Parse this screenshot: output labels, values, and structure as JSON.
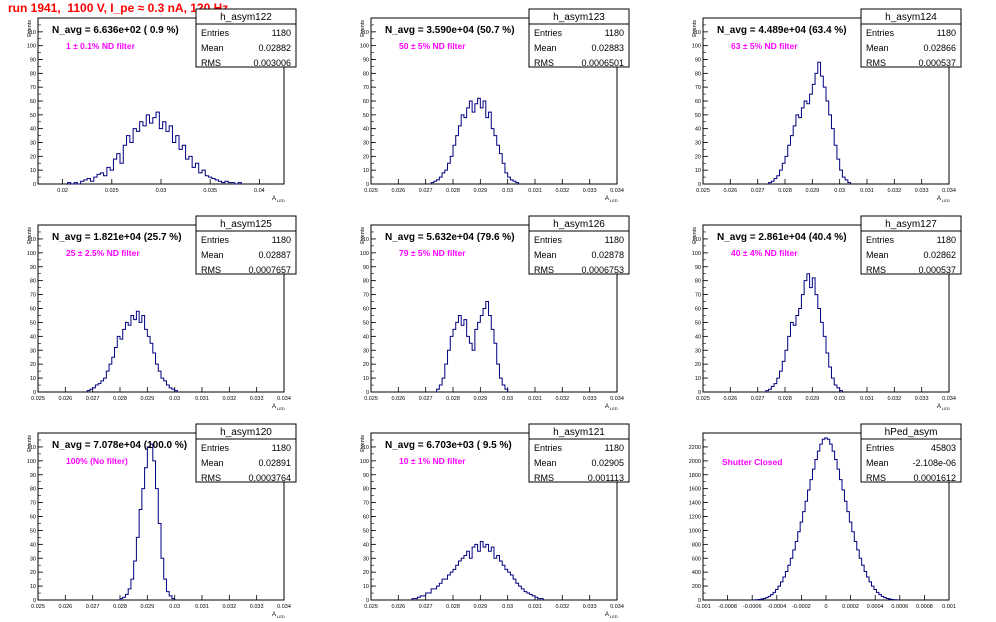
{
  "page": {
    "title": "run 1941,  1100 V, I_pe ≈ 0.3 nA, 120 Hz",
    "title_color": "#ff0000"
  },
  "style": {
    "histogram_color": "#000080",
    "annotation_color": "#ff00ff",
    "frame_color": "#000000"
  },
  "chart_data": [
    {
      "type": "bar",
      "name": "h_asym122",
      "navg": "N_avg = 6.636e+02 ( 0.9 %)",
      "annotation": "1 ± 0.1% ND filter",
      "stats": [
        [
          "Entries",
          "1180"
        ],
        [
          "Mean",
          "0.02882"
        ],
        [
          "RMS",
          "0.003006"
        ]
      ],
      "ylabel": "Events",
      "xlabel": "A",
      "xlim": [
        0.0175,
        0.0425
      ],
      "ylim": [
        0,
        120
      ],
      "yticks": [
        0,
        10,
        20,
        30,
        40,
        50,
        60,
        70,
        80,
        90,
        100,
        110
      ],
      "xticks": [
        0.02,
        0.025,
        0.03,
        0.035,
        0.04
      ],
      "xtick_labels": [
        "0.02",
        "0.025",
        "0.03",
        "0.035",
        "0.04"
      ],
      "bin_width": 0.0003333,
      "values": [
        1,
        0,
        1,
        0,
        2,
        3,
        4,
        2,
        5,
        7,
        8,
        6,
        12,
        10,
        18,
        22,
        15,
        28,
        35,
        30,
        40,
        38,
        45,
        42,
        50,
        44,
        48,
        52,
        40,
        45,
        38,
        42,
        30,
        35,
        25,
        28,
        18,
        20,
        12,
        15,
        8,
        10,
        6,
        5,
        4,
        3,
        2,
        1,
        2,
        1,
        1,
        0,
        1
      ],
      "x_start": 0.0205
    },
    {
      "type": "bar",
      "name": "h_asym123",
      "navg": "N_avg = 3.590e+04 (50.7 %)",
      "annotation": "50 ± 5% ND filter",
      "stats": [
        [
          "Entries",
          "1180"
        ],
        [
          "Mean",
          "0.02883"
        ],
        [
          "RMS",
          "0.0006501"
        ]
      ],
      "ylabel": "Events",
      "xlabel": "A",
      "xlim": [
        0.025,
        0.034
      ],
      "ylim": [
        0,
        120
      ],
      "yticks": [
        0,
        10,
        20,
        30,
        40,
        50,
        60,
        70,
        80,
        90,
        100,
        110
      ],
      "xticks": [
        0.025,
        0.026,
        0.027,
        0.028,
        0.029,
        0.03,
        0.031,
        0.032,
        0.033,
        0.034
      ],
      "xtick_labels": [
        "0.025",
        "0.026",
        "0.027",
        "0.028",
        "0.029",
        "0.03",
        "0.031",
        "0.032",
        "0.033",
        "0.034"
      ],
      "bin_width": 0.0001,
      "values": [
        1,
        2,
        3,
        5,
        8,
        10,
        15,
        20,
        28,
        35,
        42,
        50,
        48,
        55,
        60,
        52,
        58,
        62,
        55,
        60,
        48,
        52,
        40,
        35,
        28,
        22,
        15,
        8,
        5,
        3,
        2,
        1
      ],
      "x_start": 0.0272
    },
    {
      "type": "bar",
      "name": "h_asym124",
      "navg": "N_avg = 4.489e+04 (63.4 %)",
      "annotation": "63 ± 5% ND filter",
      "stats": [
        [
          "Entries",
          "1180"
        ],
        [
          "Mean",
          "0.02866"
        ],
        [
          "RMS",
          "0.000537"
        ]
      ],
      "ylabel": "Events",
      "xlabel": "A",
      "xlim": [
        0.025,
        0.034
      ],
      "ylim": [
        0,
        120
      ],
      "yticks": [
        0,
        10,
        20,
        30,
        40,
        50,
        60,
        70,
        80,
        90,
        100,
        110
      ],
      "xticks": [
        0.025,
        0.026,
        0.027,
        0.028,
        0.029,
        0.03,
        0.031,
        0.032,
        0.033,
        0.034
      ],
      "xtick_labels": [
        "0.025",
        "0.026",
        "0.027",
        "0.028",
        "0.029",
        "0.03",
        "0.031",
        "0.032",
        "0.033",
        "0.034"
      ],
      "bin_width": 0.0001,
      "values": [
        1,
        2,
        4,
        6,
        10,
        15,
        20,
        28,
        35,
        42,
        50,
        48,
        55,
        60,
        58,
        65,
        72,
        80,
        88,
        78,
        70,
        60,
        50,
        40,
        28,
        18,
        10,
        5,
        3,
        1
      ],
      "x_start": 0.0274
    },
    {
      "type": "bar",
      "name": "h_asym125",
      "navg": "N_avg = 1.821e+04 (25.7 %)",
      "annotation": "25 ± 2.5% ND filter",
      "stats": [
        [
          "Entries",
          "1180"
        ],
        [
          "Mean",
          "0.02887"
        ],
        [
          "RMS",
          "0.0007657"
        ]
      ],
      "ylabel": "Events",
      "xlabel": "A",
      "xlim": [
        0.025,
        0.034
      ],
      "ylim": [
        0,
        120
      ],
      "yticks": [
        0,
        10,
        20,
        30,
        40,
        50,
        60,
        70,
        80,
        90,
        100,
        110
      ],
      "xticks": [
        0.025,
        0.026,
        0.027,
        0.028,
        0.029,
        0.03,
        0.031,
        0.032,
        0.033,
        0.034
      ],
      "xtick_labels": [
        "0.025",
        "0.026",
        "0.027",
        "0.028",
        "0.029",
        "0.03",
        "0.031",
        "0.032",
        "0.033",
        "0.034"
      ],
      "bin_width": 0.0001,
      "values": [
        1,
        2,
        3,
        5,
        6,
        8,
        10,
        15,
        20,
        25,
        32,
        40,
        38,
        45,
        50,
        48,
        55,
        52,
        58,
        50,
        55,
        45,
        40,
        35,
        28,
        20,
        15,
        10,
        8,
        5,
        3,
        2,
        1
      ],
      "x_start": 0.0268
    },
    {
      "type": "bar",
      "name": "h_asym126",
      "navg": "N_avg = 5.632e+04 (79.6 %)",
      "annotation": "79 ± 5% ND filter",
      "stats": [
        [
          "Entries",
          "1180"
        ],
        [
          "Mean",
          "0.02878"
        ],
        [
          "RMS",
          "0.0006753"
        ]
      ],
      "ylabel": "Events",
      "xlabel": "A",
      "xlim": [
        0.025,
        0.034
      ],
      "ylim": [
        0,
        120
      ],
      "yticks": [
        0,
        10,
        20,
        30,
        40,
        50,
        60,
        70,
        80,
        90,
        100,
        110
      ],
      "xticks": [
        0.025,
        0.026,
        0.027,
        0.028,
        0.029,
        0.03,
        0.031,
        0.032,
        0.033,
        0.034
      ],
      "xtick_labels": [
        "0.025",
        "0.026",
        "0.027",
        "0.028",
        "0.029",
        "0.03",
        "0.031",
        "0.032",
        "0.033",
        "0.034"
      ],
      "bin_width": 0.0001,
      "values": [
        2,
        5,
        10,
        20,
        30,
        40,
        45,
        50,
        55,
        48,
        52,
        40,
        35,
        30,
        45,
        50,
        55,
        60,
        65,
        55,
        45,
        35,
        20,
        10,
        5,
        2
      ],
      "x_start": 0.0274
    },
    {
      "type": "bar",
      "name": "h_asym127",
      "navg": "N_avg = 2.861e+04 (40.4 %)",
      "annotation": "40 ± 4% ND filter",
      "stats": [
        [
          "Entries",
          "1180"
        ],
        [
          "Mean",
          "0.02862"
        ],
        [
          "RMS",
          "0.000537"
        ]
      ],
      "ylabel": "Events",
      "xlabel": "A",
      "xlim": [
        0.025,
        0.034
      ],
      "ylim": [
        0,
        120
      ],
      "yticks": [
        0,
        10,
        20,
        30,
        40,
        50,
        60,
        70,
        80,
        90,
        100,
        110
      ],
      "xticks": [
        0.025,
        0.026,
        0.027,
        0.028,
        0.029,
        0.03,
        0.031,
        0.032,
        0.033,
        0.034
      ],
      "xtick_labels": [
        "0.025",
        "0.026",
        "0.027",
        "0.028",
        "0.029",
        "0.03",
        "0.031",
        "0.032",
        "0.033",
        "0.034"
      ],
      "bin_width": 0.0001,
      "values": [
        1,
        2,
        4,
        6,
        10,
        15,
        22,
        30,
        40,
        50,
        48,
        55,
        60,
        70,
        80,
        85,
        75,
        82,
        70,
        60,
        50,
        40,
        28,
        18,
        10,
        5,
        3,
        1
      ],
      "x_start": 0.0273
    },
    {
      "type": "bar",
      "name": "h_asym120",
      "navg": "N_avg = 7.078e+04 (100.0 %)",
      "annotation": "100% (No filter)",
      "stats": [
        [
          "Entries",
          "1180"
        ],
        [
          "Mean",
          "0.02891"
        ],
        [
          "RMS",
          "0.0003764"
        ]
      ],
      "ylabel": "Events",
      "xlabel": "A",
      "xlim": [
        0.025,
        0.034
      ],
      "ylim": [
        0,
        120
      ],
      "yticks": [
        0,
        10,
        20,
        30,
        40,
        50,
        60,
        70,
        80,
        90,
        100,
        110
      ],
      "xticks": [
        0.025,
        0.026,
        0.027,
        0.028,
        0.029,
        0.03,
        0.031,
        0.032,
        0.033,
        0.034
      ],
      "xtick_labels": [
        "0.025",
        "0.026",
        "0.027",
        "0.028",
        "0.029",
        "0.03",
        "0.031",
        "0.032",
        "0.033",
        "0.034"
      ],
      "bin_width": 0.0001,
      "values": [
        1,
        2,
        4,
        8,
        15,
        28,
        45,
        65,
        80,
        95,
        110,
        112,
        100,
        80,
        55,
        30,
        15,
        6,
        3,
        1
      ],
      "x_start": 0.028
    },
    {
      "type": "bar",
      "name": "h_asym121",
      "navg": "N_avg = 6.703e+03 ( 9.5 %)",
      "annotation": "10 ± 1% ND filter",
      "stats": [
        [
          "Entries",
          "1180"
        ],
        [
          "Mean",
          "0.02905"
        ],
        [
          "RMS",
          "0.001113"
        ]
      ],
      "ylabel": "Events",
      "xlabel": "A",
      "xlim": [
        0.025,
        0.034
      ],
      "ylim": [
        0,
        120
      ],
      "yticks": [
        0,
        10,
        20,
        30,
        40,
        50,
        60,
        70,
        80,
        90,
        100,
        110
      ],
      "xticks": [
        0.025,
        0.026,
        0.027,
        0.028,
        0.029,
        0.03,
        0.031,
        0.032,
        0.033,
        0.034
      ],
      "xtick_labels": [
        "0.025",
        "0.026",
        "0.027",
        "0.028",
        "0.029",
        "0.03",
        "0.031",
        "0.032",
        "0.033",
        "0.034"
      ],
      "bin_width": 0.0001,
      "values": [
        1,
        1,
        2,
        3,
        3,
        5,
        5,
        8,
        8,
        10,
        12,
        15,
        15,
        18,
        20,
        22,
        25,
        28,
        30,
        32,
        35,
        30,
        38,
        40,
        35,
        42,
        38,
        40,
        35,
        38,
        30,
        32,
        28,
        25,
        22,
        20,
        18,
        15,
        12,
        10,
        8,
        6,
        5,
        4,
        3,
        2,
        1,
        1
      ],
      "x_start": 0.0265
    },
    {
      "type": "bar",
      "name": "hPed_asym",
      "navg": "",
      "annotation": "Shutter Closed",
      "stats": [
        [
          "Entries",
          "45803"
        ],
        [
          "Mean",
          "-2.108e-06"
        ],
        [
          "RMS",
          "0.0001612"
        ]
      ],
      "ylabel": "",
      "xlabel": "",
      "xlim": [
        -0.001,
        0.001
      ],
      "ylim": [
        0,
        2400
      ],
      "yticks": [
        0,
        200,
        400,
        600,
        800,
        1000,
        1200,
        1400,
        1600,
        1800,
        2000,
        2200
      ],
      "xticks": [
        -0.001,
        -0.0008,
        -0.0006,
        -0.0004,
        -0.0002,
        0,
        0.0002,
        0.0004,
        0.0006,
        0.0008,
        0.001
      ],
      "xtick_labels": [
        "-0.001",
        "-0.0008",
        "-0.0006",
        "-0.0004",
        "-0.0002",
        "0",
        "0.0002",
        "0.0004",
        "0.0006",
        "0.0008",
        "0.001"
      ],
      "bin_width": 2e-05,
      "values": [
        2,
        4,
        8,
        14,
        22,
        34,
        52,
        78,
        110,
        150,
        200,
        260,
        330,
        410,
        500,
        600,
        720,
        840,
        980,
        1120,
        1270,
        1420,
        1580,
        1730,
        1880,
        2020,
        2140,
        2240,
        2310,
        2330,
        2310,
        2240,
        2140,
        2020,
        1880,
        1730,
        1580,
        1420,
        1270,
        1120,
        980,
        840,
        720,
        600,
        500,
        410,
        330,
        260,
        200,
        150,
        110,
        78,
        52,
        34,
        22,
        14,
        8,
        4,
        2
      ],
      "x_start": -0.00059
    }
  ]
}
